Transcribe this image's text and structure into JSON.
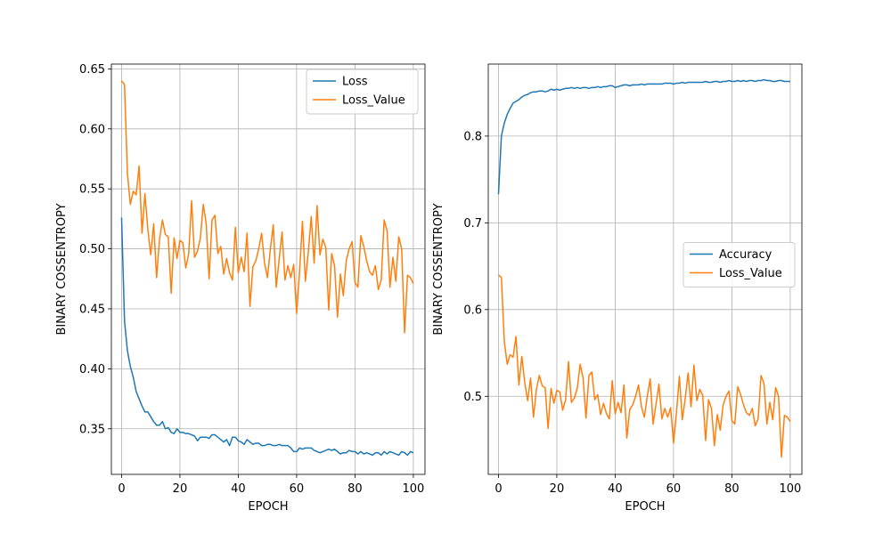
{
  "chart_data": [
    {
      "type": "line",
      "title": "",
      "xlabel": "EPOCH",
      "ylabel": "BINARY COSSENTROPY",
      "xlim": [
        -3.5,
        104
      ],
      "ylim": [
        0.312,
        0.654
      ],
      "xticks": [
        0,
        20,
        40,
        60,
        80,
        100
      ],
      "yticks": [
        0.35,
        0.4,
        0.45,
        0.5,
        0.55,
        0.6,
        0.65
      ],
      "ytick_labels": [
        "0.35",
        "0.40",
        "0.45",
        "0.50",
        "0.55",
        "0.60",
        "0.65"
      ],
      "grid": true,
      "legend_position": "top-right",
      "series": [
        {
          "name": "Loss",
          "color": "#1f77b4",
          "values": [
            0.526,
            0.44,
            0.415,
            0.402,
            0.393,
            0.381,
            0.375,
            0.369,
            0.364,
            0.364,
            0.36,
            0.356,
            0.353,
            0.353,
            0.356,
            0.35,
            0.351,
            0.347,
            0.346,
            0.35,
            0.347,
            0.347,
            0.346,
            0.346,
            0.345,
            0.344,
            0.34,
            0.343,
            0.343,
            0.343,
            0.342,
            0.345,
            0.345,
            0.343,
            0.341,
            0.339,
            0.341,
            0.336,
            0.343,
            0.343,
            0.34,
            0.339,
            0.337,
            0.341,
            0.339,
            0.337,
            0.338,
            0.338,
            0.336,
            0.336,
            0.337,
            0.337,
            0.336,
            0.336,
            0.337,
            0.336,
            0.336,
            0.336,
            0.334,
            0.331,
            0.331,
            0.334,
            0.333,
            0.334,
            0.334,
            0.334,
            0.332,
            0.331,
            0.33,
            0.331,
            0.332,
            0.333,
            0.332,
            0.333,
            0.331,
            0.329,
            0.33,
            0.33,
            0.332,
            0.331,
            0.331,
            0.329,
            0.331,
            0.329,
            0.33,
            0.329,
            0.328,
            0.33,
            0.33,
            0.328,
            0.331,
            0.329,
            0.331,
            0.33,
            0.329,
            0.328,
            0.331,
            0.33,
            0.328,
            0.331,
            0.33
          ]
        },
        {
          "name": "Loss_Value",
          "color": "#ff7f0e",
          "values": [
            0.64,
            0.637,
            0.563,
            0.537,
            0.548,
            0.545,
            0.569,
            0.513,
            0.546,
            0.516,
            0.495,
            0.521,
            0.476,
            0.508,
            0.524,
            0.512,
            0.51,
            0.463,
            0.509,
            0.492,
            0.507,
            0.505,
            0.484,
            0.496,
            0.54,
            0.493,
            0.498,
            0.509,
            0.537,
            0.521,
            0.475,
            0.524,
            0.528,
            0.496,
            0.502,
            0.479,
            0.492,
            0.48,
            0.474,
            0.518,
            0.48,
            0.493,
            0.481,
            0.513,
            0.452,
            0.485,
            0.49,
            0.5,
            0.513,
            0.488,
            0.476,
            0.5,
            0.52,
            0.468,
            0.491,
            0.514,
            0.474,
            0.486,
            0.476,
            0.487,
            0.446,
            0.481,
            0.523,
            0.473,
            0.497,
            0.527,
            0.488,
            0.536,
            0.495,
            0.508,
            0.501,
            0.449,
            0.496,
            0.486,
            0.443,
            0.479,
            0.461,
            0.49,
            0.5,
            0.506,
            0.472,
            0.468,
            0.511,
            0.502,
            0.49,
            0.481,
            0.478,
            0.486,
            0.466,
            0.474,
            0.524,
            0.515,
            0.468,
            0.493,
            0.473,
            0.51,
            0.5,
            0.43,
            0.478,
            0.476,
            0.471
          ]
        }
      ]
    },
    {
      "type": "line",
      "title": "",
      "xlabel": "EPOCH",
      "ylabel": "BINARY COSSENTROPY",
      "xlim": [
        -3.5,
        104
      ],
      "ylim": [
        0.41,
        0.883
      ],
      "xticks": [
        0,
        20,
        40,
        60,
        80,
        100
      ],
      "yticks": [
        0.5,
        0.6,
        0.7,
        0.8
      ],
      "ytick_labels": [
        "0.5",
        "0.6",
        "0.7",
        "0.8"
      ],
      "grid": true,
      "legend_position": "center-right",
      "series": [
        {
          "name": "Accuracy",
          "color": "#1f77b4",
          "values": [
            0.733,
            0.8,
            0.815,
            0.825,
            0.832,
            0.838,
            0.84,
            0.842,
            0.845,
            0.847,
            0.848,
            0.85,
            0.851,
            0.851,
            0.852,
            0.852,
            0.851,
            0.852,
            0.854,
            0.853,
            0.854,
            0.853,
            0.854,
            0.855,
            0.855,
            0.856,
            0.855,
            0.856,
            0.855,
            0.856,
            0.856,
            0.855,
            0.856,
            0.856,
            0.857,
            0.856,
            0.857,
            0.857,
            0.858,
            0.858,
            0.856,
            0.857,
            0.858,
            0.859,
            0.859,
            0.858,
            0.859,
            0.859,
            0.859,
            0.86,
            0.859,
            0.86,
            0.86,
            0.86,
            0.86,
            0.86,
            0.86,
            0.861,
            0.861,
            0.861,
            0.86,
            0.861,
            0.861,
            0.862,
            0.861,
            0.862,
            0.862,
            0.862,
            0.862,
            0.862,
            0.862,
            0.863,
            0.862,
            0.862,
            0.863,
            0.863,
            0.862,
            0.863,
            0.863,
            0.864,
            0.863,
            0.863,
            0.864,
            0.863,
            0.864,
            0.863,
            0.864,
            0.864,
            0.863,
            0.864,
            0.864,
            0.865,
            0.864,
            0.864,
            0.863,
            0.863,
            0.864,
            0.864,
            0.863,
            0.863,
            0.863
          ]
        },
        {
          "name": "Loss_Value",
          "color": "#ff7f0e",
          "values": [
            0.64,
            0.637,
            0.563,
            0.537,
            0.548,
            0.545,
            0.569,
            0.513,
            0.546,
            0.516,
            0.495,
            0.521,
            0.476,
            0.508,
            0.524,
            0.512,
            0.51,
            0.463,
            0.509,
            0.492,
            0.507,
            0.505,
            0.484,
            0.496,
            0.54,
            0.493,
            0.498,
            0.509,
            0.537,
            0.521,
            0.475,
            0.524,
            0.528,
            0.496,
            0.502,
            0.479,
            0.492,
            0.48,
            0.474,
            0.518,
            0.48,
            0.493,
            0.481,
            0.513,
            0.452,
            0.485,
            0.49,
            0.5,
            0.513,
            0.488,
            0.476,
            0.5,
            0.52,
            0.468,
            0.491,
            0.514,
            0.474,
            0.486,
            0.476,
            0.487,
            0.446,
            0.481,
            0.523,
            0.473,
            0.497,
            0.527,
            0.488,
            0.536,
            0.495,
            0.508,
            0.501,
            0.449,
            0.496,
            0.486,
            0.443,
            0.479,
            0.461,
            0.49,
            0.5,
            0.506,
            0.472,
            0.468,
            0.511,
            0.502,
            0.49,
            0.481,
            0.478,
            0.486,
            0.466,
            0.474,
            0.524,
            0.515,
            0.468,
            0.493,
            0.473,
            0.51,
            0.5,
            0.43,
            0.478,
            0.476,
            0.471
          ]
        }
      ]
    }
  ]
}
